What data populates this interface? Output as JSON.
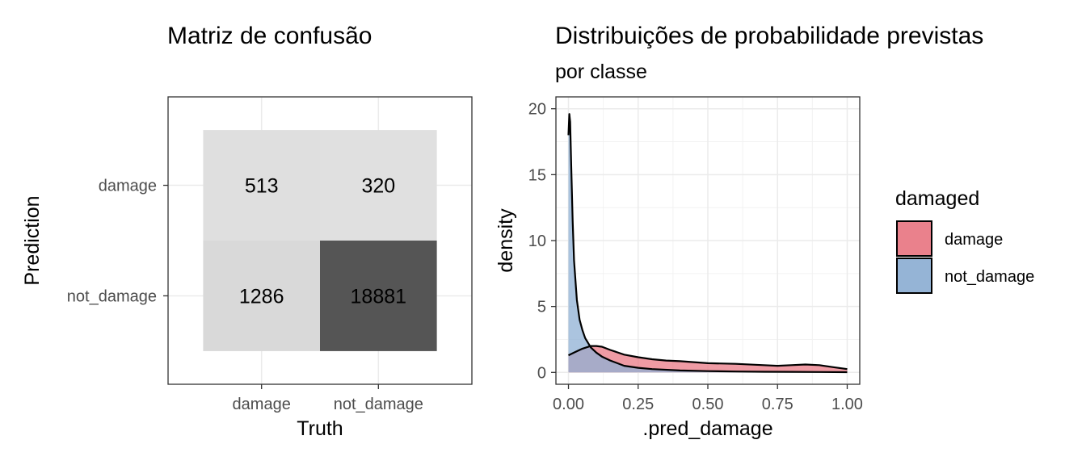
{
  "chart_data": [
    {
      "type": "heatmap",
      "title": "Matriz de confusão",
      "xlabel": "Truth",
      "ylabel": "Prediction",
      "x_categories": [
        "damage",
        "not_damage"
      ],
      "y_categories": [
        "damage",
        "not_damage"
      ],
      "cells": [
        {
          "truth": "damage",
          "prediction": "damage",
          "value": 513,
          "label": "513"
        },
        {
          "truth": "not_damage",
          "prediction": "damage",
          "value": 320,
          "label": "320"
        },
        {
          "truth": "damage",
          "prediction": "not_damage",
          "value": 1286,
          "label": "1286"
        },
        {
          "truth": "not_damage",
          "prediction": "not_damage",
          "value": 18881,
          "label": "18881"
        }
      ],
      "colors": {
        "low": "#e0e0e0",
        "high": "#555555"
      },
      "grid": true
    },
    {
      "type": "area",
      "title": "Distribuições de probabilidade previstas",
      "subtitle": "por classe",
      "xlabel": ".pred_damage",
      "ylabel": "density",
      "xlim": [
        0,
        1
      ],
      "ylim": [
        0,
        20
      ],
      "x_ticks": [
        0,
        0.25,
        0.5,
        0.75,
        1
      ],
      "x_tick_labels": [
        "0.00",
        "0.25",
        "0.50",
        "0.75",
        "1.00"
      ],
      "y_ticks": [
        0,
        5,
        10,
        15,
        20
      ],
      "y_tick_labels": [
        "0",
        "5",
        "10",
        "15",
        "20"
      ],
      "grid": true,
      "legend": {
        "title": "damaged",
        "position": "right"
      },
      "series": [
        {
          "name": "damage",
          "color": "#e97a86",
          "x": [
            0,
            0.02,
            0.05,
            0.08,
            0.1,
            0.12,
            0.15,
            0.2,
            0.25,
            0.3,
            0.35,
            0.4,
            0.5,
            0.6,
            0.7,
            0.75,
            0.8,
            0.85,
            0.9,
            0.95,
            1.0
          ],
          "y": [
            1.3,
            1.5,
            1.8,
            2.0,
            2.0,
            1.95,
            1.7,
            1.35,
            1.15,
            1.0,
            0.9,
            0.85,
            0.7,
            0.65,
            0.55,
            0.5,
            0.55,
            0.6,
            0.55,
            0.4,
            0.25
          ]
        },
        {
          "name": "not_damage",
          "color": "#8fb0d4",
          "x": [
            0,
            0.003,
            0.006,
            0.01,
            0.015,
            0.02,
            0.03,
            0.04,
            0.05,
            0.06,
            0.08,
            0.1,
            0.12,
            0.15,
            0.2,
            0.25,
            0.3,
            0.4,
            0.5,
            0.6,
            0.7,
            0.8,
            0.9,
            1.0
          ],
          "y": [
            18.0,
            19.6,
            19.0,
            15.5,
            11.5,
            8.5,
            5.5,
            4.0,
            3.2,
            2.6,
            1.9,
            1.5,
            1.2,
            0.9,
            0.5,
            0.35,
            0.25,
            0.15,
            0.1,
            0.07,
            0.05,
            0.04,
            0.03,
            0.02
          ]
        }
      ]
    }
  ]
}
